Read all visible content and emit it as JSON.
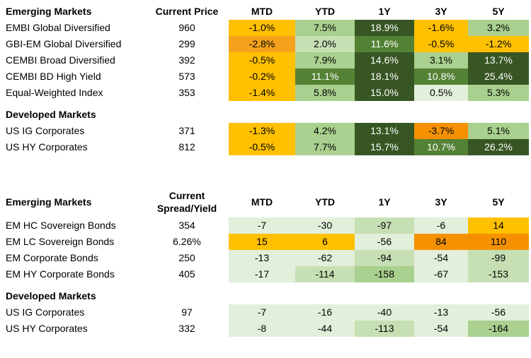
{
  "price_table": {
    "em_header": "Emerging Markets",
    "price_header": "Current Price",
    "period_headers": [
      "MTD",
      "YTD",
      "1Y",
      "3Y",
      "5Y"
    ],
    "em_rows": [
      {
        "name": "EMBI Global Diversified",
        "value": "960",
        "cells": [
          "-1.0%",
          "7.5%",
          "18.9%",
          "-1.6%",
          "3.2%"
        ]
      },
      {
        "name": "GBI-EM Global Diversified",
        "value": "299",
        "cells": [
          "-2.8%",
          "2.0%",
          "11.6%",
          "-0.5%",
          "-1.2%"
        ]
      },
      {
        "name": "CEMBI Broad Diversified",
        "value": "392",
        "cells": [
          "-0.5%",
          "7.9%",
          "14.6%",
          "3.1%",
          "13.7%"
        ]
      },
      {
        "name": "CEMBI BD High Yield",
        "value": "573",
        "cells": [
          "-0.2%",
          "11.1%",
          "18.1%",
          "10.8%",
          "25.4%"
        ]
      },
      {
        "name": "Equal-Weighted Index",
        "value": "353",
        "cells": [
          "-1.4%",
          "5.8%",
          "15.0%",
          "0.5%",
          "5.3%"
        ]
      }
    ],
    "dm_header": "Developed Markets",
    "dm_rows": [
      {
        "name": "US IG Corporates",
        "value": "371",
        "cells": [
          "-1.3%",
          "4.2%",
          "13.1%",
          "-3.7%",
          "5.1%"
        ]
      },
      {
        "name": "US HY Corporates",
        "value": "812",
        "cells": [
          "-0.5%",
          "7.7%",
          "15.7%",
          "10.7%",
          "26.2%"
        ]
      }
    ]
  },
  "spread_table": {
    "em_header": "Emerging Markets",
    "spread_header_line1": "Current",
    "spread_header_line2": "Spread/Yield",
    "period_headers": [
      "MTD",
      "YTD",
      "1Y",
      "3Y",
      "5Y"
    ],
    "em_rows": [
      {
        "name": "EM HC Sovereign Bonds",
        "value": "354",
        "cells": [
          "-7",
          "-30",
          "-97",
          "-6",
          "14"
        ]
      },
      {
        "name": "EM LC Sovereign Bonds",
        "value": "6.26%",
        "cells": [
          "15",
          "6",
          "-56",
          "84",
          "110"
        ]
      },
      {
        "name": "EM Corporate Bonds",
        "value": "250",
        "cells": [
          "-13",
          "-62",
          "-94",
          "-54",
          "-99"
        ]
      },
      {
        "name": "EM HY Corporate Bonds",
        "value": "405",
        "cells": [
          "-17",
          "-114",
          "-158",
          "-67",
          "-153"
        ]
      }
    ],
    "dm_header": "Developed Markets",
    "dm_rows": [
      {
        "name": "US IG Corporates",
        "value": "97",
        "cells": [
          "-7",
          "-16",
          "-40",
          "-13",
          "-56"
        ]
      },
      {
        "name": "US HY Corporates",
        "value": "332",
        "cells": [
          "-8",
          "-44",
          "-113",
          "-54",
          "-164"
        ]
      }
    ]
  },
  "colors": {
    "dark_green": "#375623",
    "medium_green": "#548235",
    "light_green": "#a9d08e",
    "lighter_green": "#c6e0b4",
    "pale_green": "#e2efda",
    "yellow": "#ffc000",
    "orange": "#f4a21c",
    "dark_orange": "#f59100"
  }
}
